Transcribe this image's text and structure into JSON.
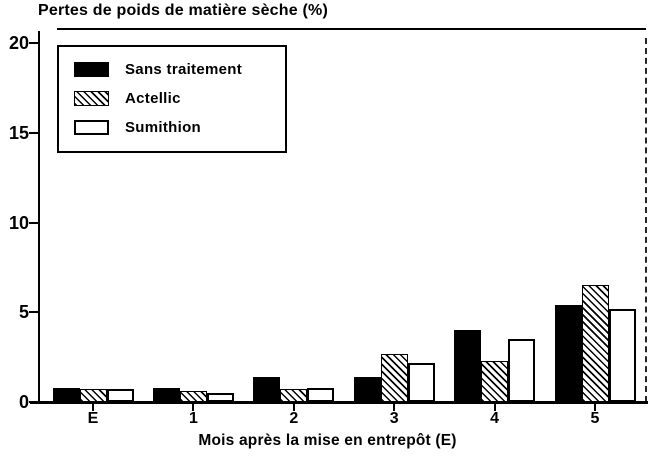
{
  "title": "Pertes de poids de matière sèche (%)",
  "colors": {
    "ink": "#000000",
    "background": "#ffffff",
    "bar_solid": "#000000",
    "bar_white": "#ffffff"
  },
  "chart_data": {
    "type": "bar",
    "title": "Pertes de poids de matière sèche (%)",
    "xlabel": "Mois après la mise en entrepôt (E)",
    "ylabel": "Pertes de poids de matière sèche (%)",
    "categories": [
      "E",
      "1",
      "2",
      "3",
      "4",
      "5"
    ],
    "series": [
      {
        "name": "Sans traitement",
        "style": "solid-black",
        "values": [
          0.8,
          0.8,
          1.4,
          1.4,
          4.0,
          5.4
        ]
      },
      {
        "name": "Actellic",
        "style": "hatched",
        "values": [
          0.7,
          0.6,
          0.7,
          2.7,
          2.3,
          6.5
        ]
      },
      {
        "name": "Sumithion",
        "style": "white",
        "values": [
          0.7,
          0.5,
          0.8,
          2.2,
          3.5,
          5.2
        ]
      }
    ],
    "ylim": [
      0,
      20
    ],
    "yticks": [
      0,
      5,
      10,
      15,
      20
    ],
    "grid": false,
    "legend_position": "upper-left"
  }
}
